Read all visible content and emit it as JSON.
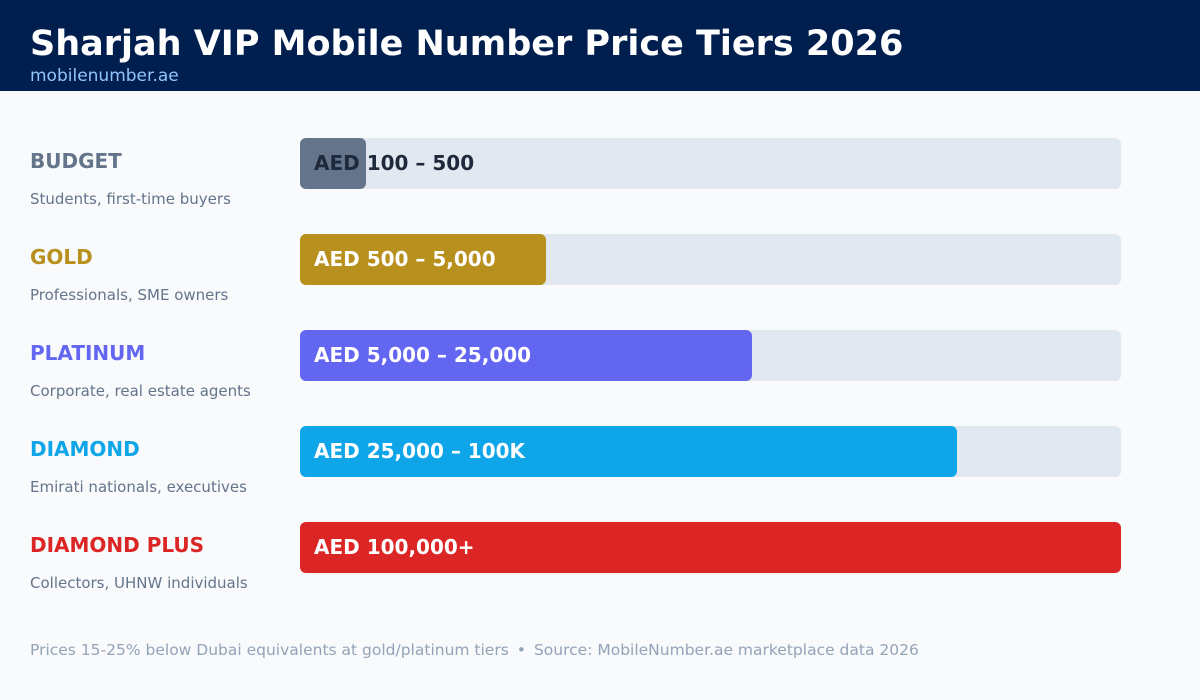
{
  "header": {
    "title": "Sharjah VIP Mobile Number Price Tiers 2026",
    "site": "mobilenumber.ae"
  },
  "chart_data": {
    "type": "bar",
    "orientation": "horizontal",
    "title": "Sharjah VIP Mobile Number Price Tiers 2026",
    "xlim": [
      0,
      1
    ],
    "categories": [
      "BUDGET",
      "GOLD",
      "PLATINUM",
      "DIAMOND",
      "DIAMOND PLUS"
    ],
    "values": [
      0.08,
      0.3,
      0.55,
      0.8,
      1.0
    ],
    "tiers": [
      {
        "name": "BUDGET",
        "description": "Students, first-time buyers",
        "range": "AED 100 – 500",
        "fill_fraction": 0.08,
        "color": "#64748b",
        "name_color": "#64748b",
        "label_color": "#1e293b"
      },
      {
        "name": "GOLD",
        "description": "Professionals, SME owners",
        "range": "AED 500 – 5,000",
        "fill_fraction": 0.3,
        "color": "#b8901e",
        "name_color": "#b8901e",
        "label_color": "#ffffff"
      },
      {
        "name": "PLATINUM",
        "description": "Corporate, real estate agents",
        "range": "AED 5,000 – 25,000",
        "fill_fraction": 0.55,
        "color": "#6366f1",
        "name_color": "#6366f1",
        "label_color": "#ffffff"
      },
      {
        "name": "DIAMOND",
        "description": "Emirati nationals, executives",
        "range": "AED 25,000 – 100K",
        "fill_fraction": 0.8,
        "color": "#0ea5e9",
        "name_color": "#0ea5e9",
        "label_color": "#ffffff"
      },
      {
        "name": "DIAMOND PLUS",
        "description": "Collectors, UHNW individuals",
        "range": "AED 100,000+",
        "fill_fraction": 1.0,
        "color": "#dc2626",
        "name_color": "#dc2626",
        "label_color": "#ffffff"
      }
    ],
    "track_color": "#e2e8f0",
    "grid": false,
    "legend": "none"
  },
  "footer": {
    "note": "Prices 15-25% below Dubai equivalents at gold/platinum tiers",
    "separator": "•",
    "source": "Source: MobileNumber.ae marketplace data 2026"
  }
}
